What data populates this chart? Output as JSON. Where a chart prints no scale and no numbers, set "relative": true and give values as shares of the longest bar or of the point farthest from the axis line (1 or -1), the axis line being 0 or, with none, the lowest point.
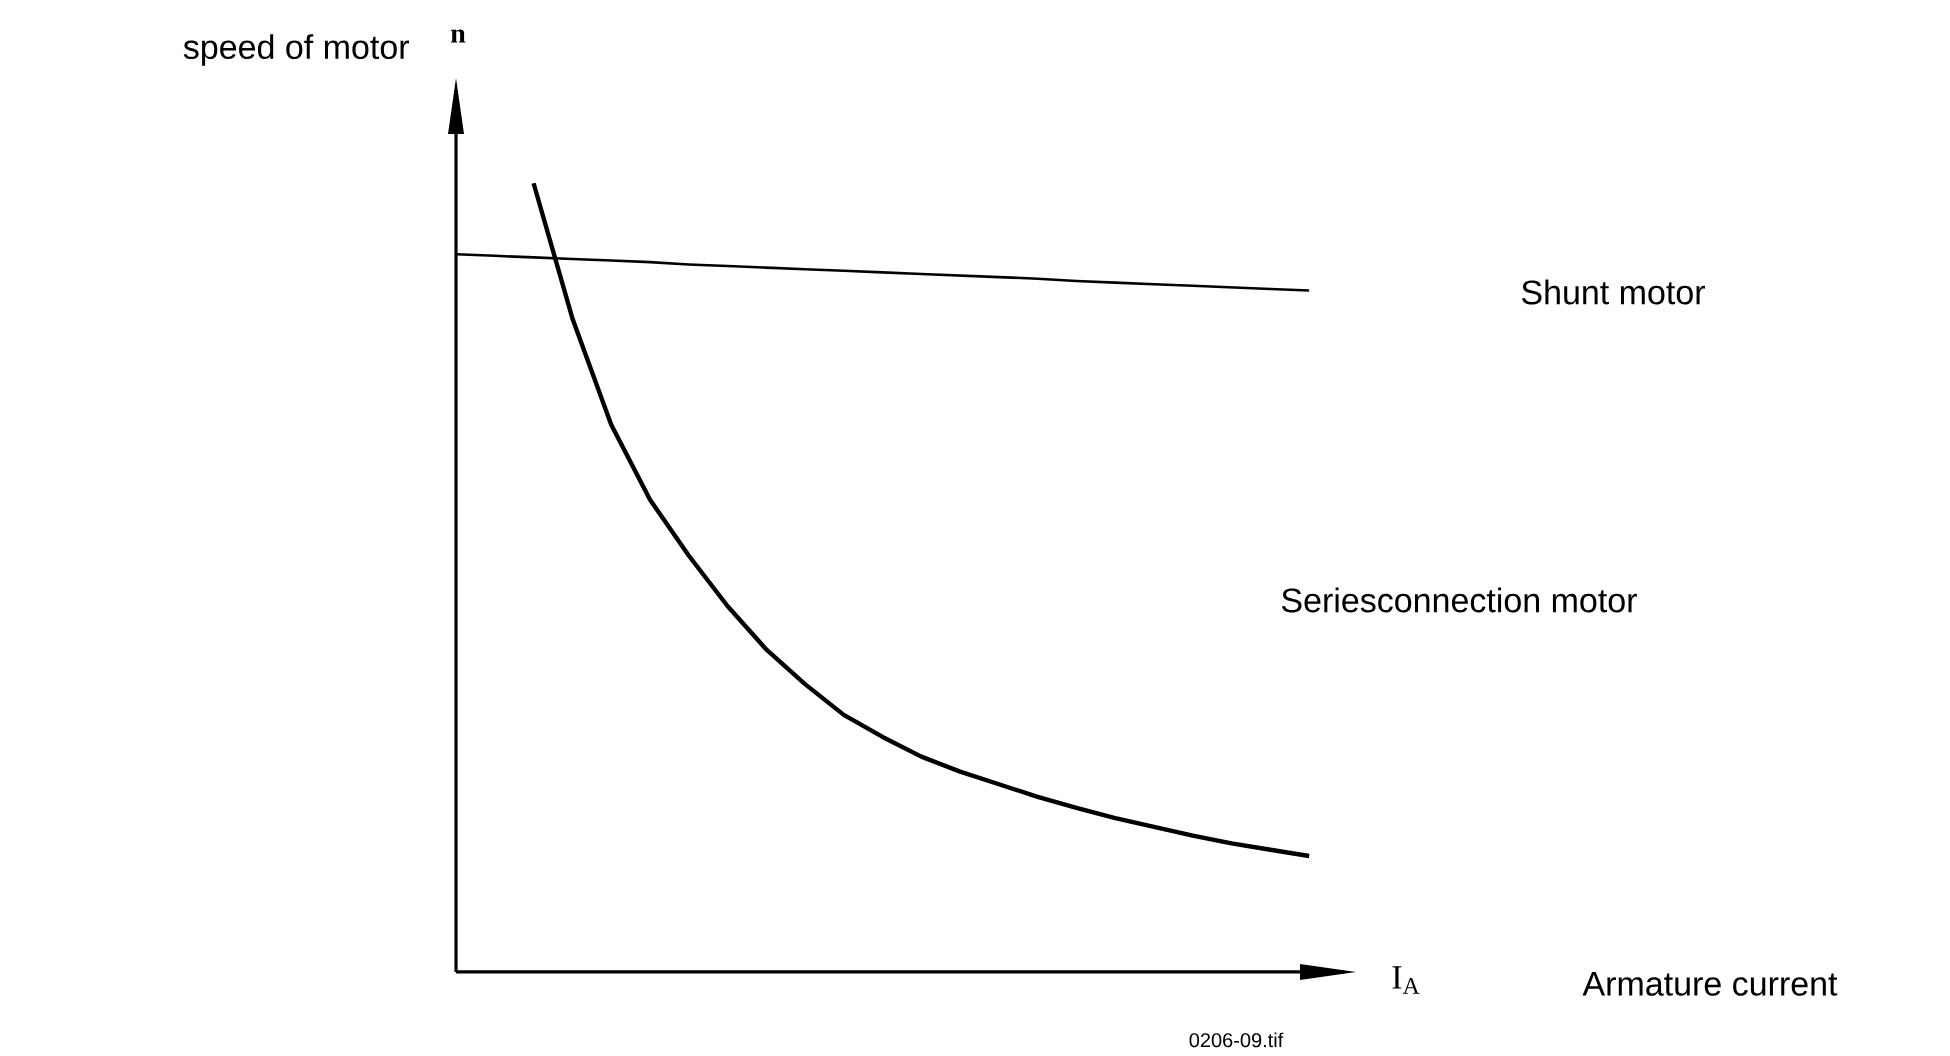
{
  "chart_data": {
    "type": "line",
    "relative": true,
    "marker": "none",
    "line_style": "solid",
    "ylabel": "speed of motor",
    "annotations": [
      "n",
      "I$_{A}$",
      "0206-09.tif",
      "Armature current"
    ],
    "categories": [
      null,
      null,
      null,
      null,
      null,
      null,
      null,
      null,
      null,
      null,
      null,
      null,
      null,
      null,
      null,
      null,
      null,
      null,
      null,
      null,
      null,
      null,
      null
    ],
    "series": [
      {
        "name": "Shunt motor",
        "color": "#000000",
        "values": [
          0.91,
          0.908,
          0.906,
          0.904,
          0.902,
          0.9,
          0.897,
          0.895,
          0.893,
          0.891,
          0.889,
          0.887,
          0.885,
          0.883,
          0.881,
          0.879,
          0.876,
          0.874,
          0.872,
          0.87,
          0.868,
          0.866,
          0.864
        ]
      },
      {
        "name": "Seriesconnection motor",
        "color": "#000000",
        "values": [
          null,
          null,
          1,
          0.829,
          0.694,
          0.599,
          0.528,
          0.464,
          0.409,
          0.365,
          0.326,
          0.298,
          0.273,
          0.254,
          0.238,
          0.222,
          0.208,
          0.195,
          0.184,
          0.173,
          0.163,
          0.155,
          0.147
        ]
      }
    ]
  }
}
